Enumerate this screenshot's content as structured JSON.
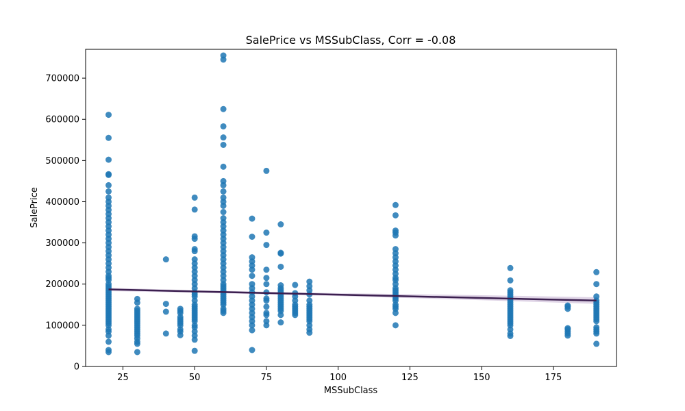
{
  "chart_data": {
    "type": "scatter",
    "title": "SalePrice vs MSSubClass, Corr = -0.08",
    "xlabel": "MSSubClass",
    "ylabel": "SalePrice",
    "xlim": [
      12,
      197
    ],
    "ylim": [
      0,
      770000
    ],
    "x_ticks": [
      25,
      50,
      75,
      100,
      125,
      150,
      175
    ],
    "y_ticks": [
      0,
      100000,
      200000,
      300000,
      400000,
      500000,
      600000,
      700000
    ],
    "grid": false,
    "point_color": "#1f77b4",
    "regression_color": "#3b1f4f",
    "confidence_band_color": "#c9b8d6",
    "regression_line": {
      "x": [
        20,
        190
      ],
      "y": [
        187000,
        160000
      ]
    },
    "confidence_band": {
      "x": [
        20,
        50,
        100,
        150,
        190
      ],
      "lower": [
        183000,
        179000,
        171000,
        161000,
        152000
      ],
      "upper": [
        191000,
        185000,
        178000,
        173000,
        168000
      ]
    },
    "groups": [
      {
        "x": 20,
        "y": [
          35000,
          40000,
          60000,
          75000,
          85000,
          90000,
          100000,
          105000,
          110000,
          115000,
          120000,
          125000,
          130000,
          135000,
          140000,
          145000,
          150000,
          155000,
          160000,
          165000,
          170000,
          175000,
          180000,
          185000,
          190000,
          195000,
          200000,
          210000,
          215000,
          220000,
          230000,
          240000,
          250000,
          260000,
          270000,
          280000,
          290000,
          300000,
          310000,
          320000,
          330000,
          340000,
          350000,
          360000,
          370000,
          380000,
          390000,
          400000,
          410000,
          425000,
          440000,
          465000,
          467000,
          502000,
          555000,
          611000
        ]
      },
      {
        "x": 30,
        "y": [
          35000,
          55000,
          60000,
          68000,
          75000,
          80000,
          85000,
          90000,
          95000,
          100000,
          105000,
          110000,
          115000,
          120000,
          125000,
          130000,
          135000,
          140000,
          155000,
          164000
        ]
      },
      {
        "x": 40,
        "y": [
          80000,
          133000,
          152000,
          260000
        ]
      },
      {
        "x": 45,
        "y": [
          76000,
          85000,
          90000,
          100000,
          105000,
          110000,
          115000,
          120000,
          130000,
          135000,
          140000
        ]
      },
      {
        "x": 50,
        "y": [
          38000,
          65000,
          75000,
          85000,
          95000,
          100000,
          110000,
          115000,
          120000,
          125000,
          130000,
          135000,
          140000,
          145000,
          150000,
          160000,
          170000,
          175000,
          180000,
          190000,
          200000,
          210000,
          220000,
          230000,
          240000,
          250000,
          260000,
          280000,
          285000,
          310000,
          316000,
          381000,
          410000
        ]
      },
      {
        "x": 60,
        "y": [
          130000,
          135000,
          140000,
          150000,
          155000,
          160000,
          165000,
          170000,
          175000,
          180000,
          185000,
          190000,
          195000,
          200000,
          210000,
          220000,
          230000,
          240000,
          250000,
          260000,
          270000,
          280000,
          290000,
          300000,
          310000,
          320000,
          330000,
          340000,
          350000,
          360000,
          375000,
          390000,
          400000,
          410000,
          425000,
          440000,
          450000,
          485000,
          538000,
          556000,
          583000,
          625000,
          745000,
          755000
        ]
      },
      {
        "x": 70,
        "y": [
          40000,
          88000,
          100000,
          110000,
          120000,
          130000,
          140000,
          150000,
          160000,
          170000,
          180000,
          190000,
          200000,
          220000,
          235000,
          245000,
          255000,
          265000,
          315000,
          359000
        ]
      },
      {
        "x": 75,
        "y": [
          100000,
          110000,
          125000,
          130000,
          145000,
          160000,
          165000,
          180000,
          200000,
          215000,
          235000,
          295000,
          325000,
          475000
        ]
      },
      {
        "x": 80,
        "y": [
          107000,
          125000,
          135000,
          140000,
          145000,
          150000,
          155000,
          160000,
          165000,
          170000,
          175000,
          180000,
          185000,
          190000,
          197000,
          242000,
          274000,
          276000,
          345000
        ]
      },
      {
        "x": 85,
        "y": [
          125000,
          130000,
          135000,
          140000,
          145000,
          150000,
          160000,
          170000,
          178000,
          198000
        ]
      },
      {
        "x": 90,
        "y": [
          82000,
          90000,
          100000,
          110000,
          115000,
          120000,
          125000,
          130000,
          135000,
          140000,
          145000,
          150000,
          160000,
          175000,
          185000,
          195000,
          206000
        ]
      },
      {
        "x": 120,
        "y": [
          100000,
          130000,
          140000,
          145000,
          150000,
          160000,
          165000,
          170000,
          175000,
          180000,
          185000,
          190000,
          200000,
          210000,
          215000,
          225000,
          235000,
          245000,
          255000,
          265000,
          275000,
          285000,
          318000,
          325000,
          330000,
          367000,
          392000
        ]
      },
      {
        "x": 160,
        "y": [
          74000,
          80000,
          90000,
          100000,
          105000,
          110000,
          115000,
          120000,
          125000,
          130000,
          135000,
          140000,
          145000,
          150000,
          155000,
          160000,
          165000,
          170000,
          175000,
          180000,
          185000,
          209000,
          239000
        ]
      },
      {
        "x": 180,
        "y": [
          75000,
          80000,
          85000,
          90000,
          93000,
          140000,
          145000,
          148000
        ]
      },
      {
        "x": 190,
        "y": [
          55000,
          80000,
          85000,
          90000,
          95000,
          110000,
          115000,
          120000,
          125000,
          130000,
          135000,
          140000,
          145000,
          150000,
          155000,
          160000,
          170000,
          200000,
          229000
        ]
      }
    ]
  }
}
